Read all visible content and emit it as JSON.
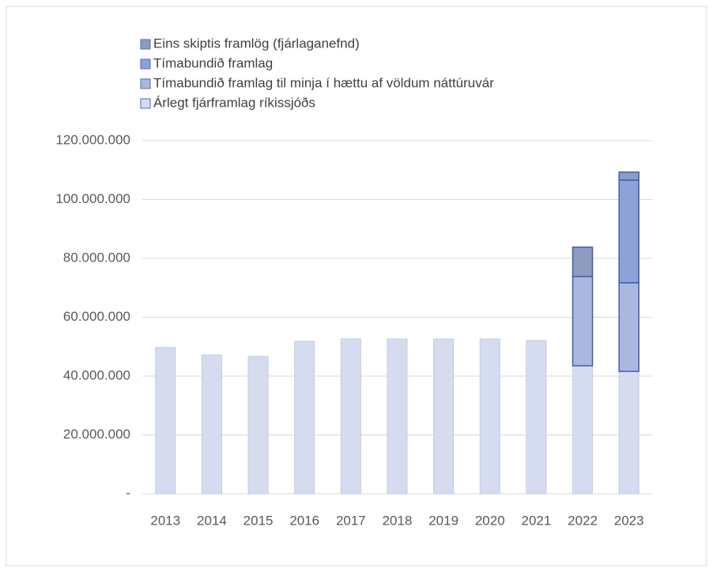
{
  "chart_data": {
    "type": "bar",
    "stacked": true,
    "categories": [
      "2013",
      "2014",
      "2015",
      "2016",
      "2017",
      "2018",
      "2019",
      "2020",
      "2021",
      "2022",
      "2023"
    ],
    "series": [
      {
        "name": "Árlegt fjárframlag ríkissjóðs",
        "color": "#d6dcef",
        "values": [
          49700000,
          47200000,
          46700000,
          51800000,
          52600000,
          52600000,
          52600000,
          52600000,
          52100000,
          43500000,
          41600000
        ]
      },
      {
        "name": "Tímabundið framlag til minja í hættu af völdum náttúruvár",
        "color": "#aab8e0",
        "values": [
          null,
          null,
          null,
          null,
          null,
          null,
          null,
          null,
          null,
          30300000,
          30100000
        ]
      },
      {
        "name": "Tímabundið framlag",
        "color": "#8ea0d8",
        "values": [
          null,
          null,
          null,
          null,
          null,
          null,
          null,
          null,
          null,
          null,
          34900000
        ]
      },
      {
        "name": "Eins skiptis framlög (fjárlaganefnd)",
        "color": "#8f9bbf",
        "values": [
          null,
          null,
          null,
          null,
          null,
          null,
          null,
          null,
          null,
          10000000,
          2700000
        ]
      }
    ],
    "ylim": [
      0,
      120000000
    ],
    "yticks": [
      {
        "value": 0,
        "label": "-"
      },
      {
        "value": 20000000,
        "label": "20.000.000"
      },
      {
        "value": 40000000,
        "label": "40.000.000"
      },
      {
        "value": 60000000,
        "label": "60.000.000"
      },
      {
        "value": 80000000,
        "label": "80.000.000"
      },
      {
        "value": 100000000,
        "label": "100.000.000"
      },
      {
        "value": 120000000,
        "label": "120.000.000"
      }
    ],
    "grid": true,
    "legend": "top-left"
  }
}
